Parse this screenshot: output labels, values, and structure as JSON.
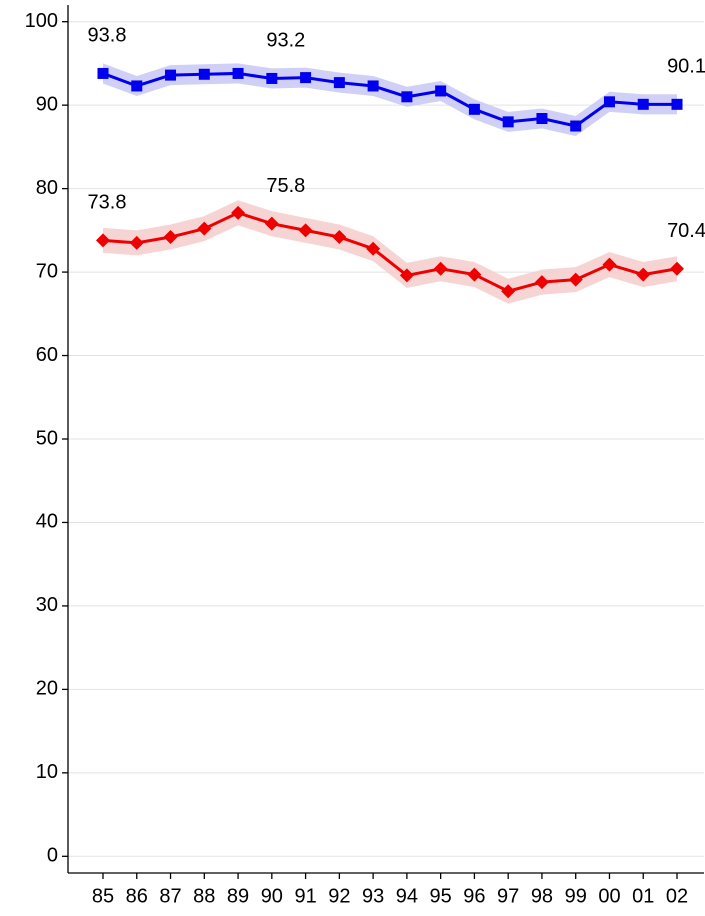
{
  "chart_data": {
    "type": "line",
    "categories": [
      "85",
      "86",
      "87",
      "88",
      "89",
      "90",
      "91",
      "92",
      "93",
      "94",
      "95",
      "96",
      "97",
      "98",
      "99",
      "00",
      "01",
      "02"
    ],
    "series": [
      {
        "color": "#0000ee",
        "band_color": "#c8c8f4",
        "marker": "square",
        "error": 1.2,
        "values": [
          93.8,
          92.3,
          93.6,
          93.7,
          93.8,
          93.2,
          93.3,
          92.7,
          92.3,
          91.0,
          91.7,
          89.5,
          88.0,
          88.4,
          87.5,
          90.4,
          90.1,
          90.1
        ]
      },
      {
        "color": "#ee0000",
        "band_color": "#f6cccc",
        "marker": "diamond",
        "error": 1.5,
        "values": [
          73.8,
          73.5,
          74.2,
          75.2,
          77.1,
          75.8,
          75.0,
          74.2,
          72.8,
          69.6,
          70.4,
          69.7,
          67.7,
          68.8,
          69.1,
          70.9,
          69.7,
          70.4
        ]
      }
    ],
    "annotations": [
      {
        "category": "85",
        "value": 93.8
      },
      {
        "category": "90",
        "value": 93.2
      },
      {
        "category": "02",
        "value": 90.1
      },
      {
        "category": "85",
        "value": 73.8
      },
      {
        "category": "90",
        "value": 75.8
      },
      {
        "category": "02",
        "value": 70.4
      }
    ],
    "ylim": [
      -2,
      102
    ],
    "yticks": [
      0,
      10,
      20,
      30,
      40,
      50,
      60,
      70,
      80,
      90,
      100
    ],
    "grid": true
  }
}
